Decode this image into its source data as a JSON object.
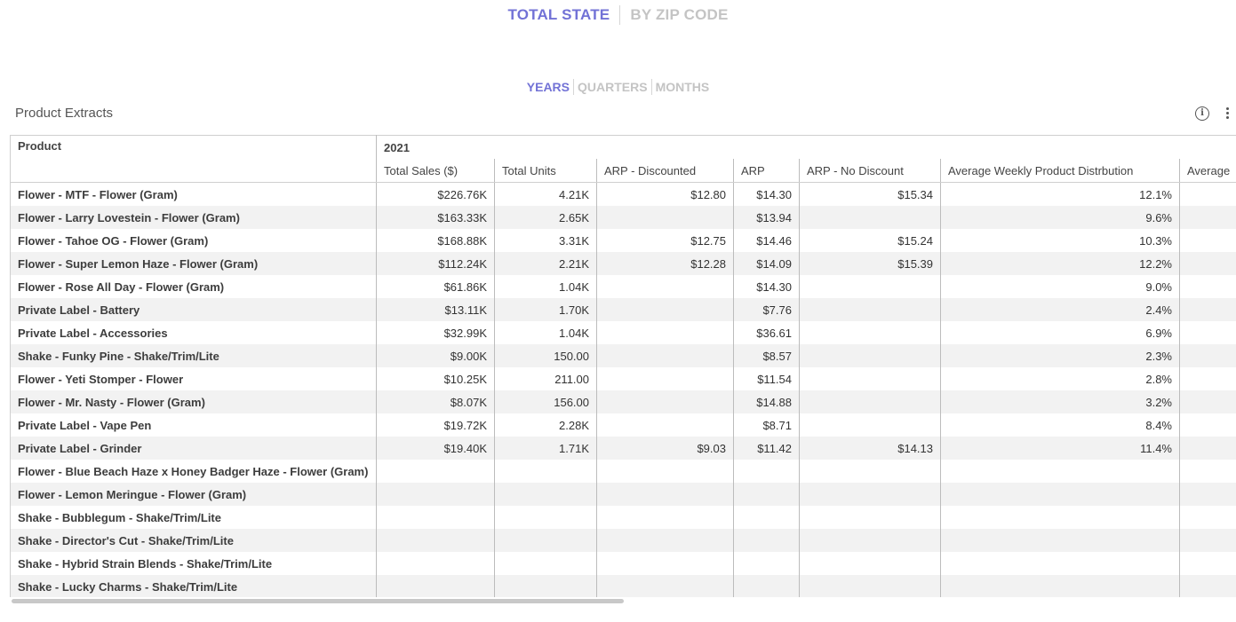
{
  "view_toggle": {
    "active": "TOTAL STATE",
    "inactive": "BY ZIP CODE"
  },
  "period_toggle": {
    "years": "YEARS",
    "quarters": "QUARTERS",
    "months": "MONTHS"
  },
  "widget": {
    "title": "Product Extracts",
    "info_icon": "info-icon",
    "menu_icon": "more-vertical-icon"
  },
  "table": {
    "product_header": "Product",
    "year": "2021",
    "columns": [
      "Total Sales ($)",
      "Total Units",
      "ARP - Discounted",
      "ARP",
      "ARP - No Discount",
      "Average Weekly Product Distrbution",
      "Average"
    ],
    "rows": [
      [
        "Flower - MTF - Flower (Gram)",
        "$226.76K",
        "4.21K",
        "$12.80",
        "$14.30",
        "$15.34",
        "12.1%",
        ""
      ],
      [
        "Flower - Larry Lovestein - Flower (Gram)",
        "$163.33K",
        "2.65K",
        "",
        "$13.94",
        "",
        "9.6%",
        ""
      ],
      [
        "Flower - Tahoe OG - Flower (Gram)",
        "$168.88K",
        "3.31K",
        "$12.75",
        "$14.46",
        "$15.24",
        "10.3%",
        ""
      ],
      [
        "Flower - Super Lemon Haze - Flower (Gram)",
        "$112.24K",
        "2.21K",
        "$12.28",
        "$14.09",
        "$15.39",
        "12.2%",
        ""
      ],
      [
        "Flower - Rose All Day - Flower (Gram)",
        "$61.86K",
        "1.04K",
        "",
        "$14.30",
        "",
        "9.0%",
        ""
      ],
      [
        "Private Label - Battery",
        "$13.11K",
        "1.70K",
        "",
        "$7.76",
        "",
        "2.4%",
        ""
      ],
      [
        "Private Label - Accessories",
        "$32.99K",
        "1.04K",
        "",
        "$36.61",
        "",
        "6.9%",
        ""
      ],
      [
        "Shake - Funky Pine - Shake/Trim/Lite",
        "$9.00K",
        "150.00",
        "",
        "$8.57",
        "",
        "2.3%",
        ""
      ],
      [
        "Flower - Yeti Stomper - Flower",
        "$10.25K",
        "211.00",
        "",
        "$11.54",
        "",
        "2.8%",
        ""
      ],
      [
        "Flower - Mr. Nasty - Flower (Gram)",
        "$8.07K",
        "156.00",
        "",
        "$14.88",
        "",
        "3.2%",
        ""
      ],
      [
        "Private Label - Vape Pen",
        "$19.72K",
        "2.28K",
        "",
        "$8.71",
        "",
        "8.4%",
        ""
      ],
      [
        "Private Label - Grinder",
        "$19.40K",
        "1.71K",
        "$9.03",
        "$11.42",
        "$14.13",
        "11.4%",
        ""
      ],
      [
        "Flower - Blue Beach Haze x Honey Badger Haze - Flower (Gram)",
        "",
        "",
        "",
        "",
        "",
        "",
        ""
      ],
      [
        "Flower - Lemon Meringue - Flower (Gram)",
        "",
        "",
        "",
        "",
        "",
        "",
        ""
      ],
      [
        "Shake - Bubblegum - Shake/Trim/Lite",
        "",
        "",
        "",
        "",
        "",
        "",
        ""
      ],
      [
        "Shake - Director's Cut - Shake/Trim/Lite",
        "",
        "",
        "",
        "",
        "",
        "",
        ""
      ],
      [
        "Shake - Hybrid Strain Blends - Shake/Trim/Lite",
        "",
        "",
        "",
        "",
        "",
        "",
        ""
      ],
      [
        "Shake - Lucky Charms - Shake/Trim/Lite",
        "",
        "",
        "",
        "",
        "",
        "",
        ""
      ]
    ]
  },
  "colors": {
    "accent": "#7272d6",
    "inactive": "#c4c4c4",
    "row_alt": "#f2f2f2"
  }
}
